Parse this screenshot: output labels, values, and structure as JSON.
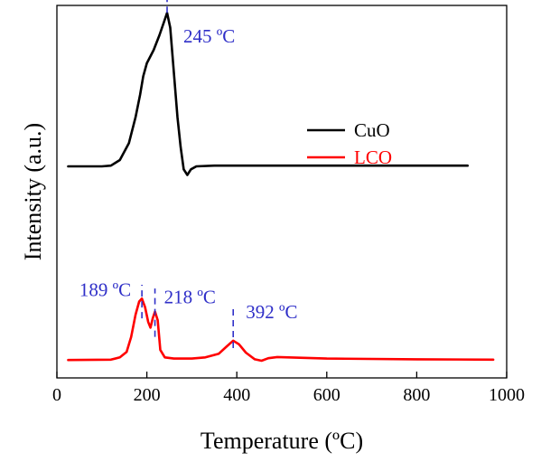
{
  "chart_data": {
    "type": "line",
    "xlabel": "Temperature (ºC)",
    "ylabel": "Intensity (a.u.)",
    "xlim": [
      0,
      1000
    ],
    "xticks": [
      0,
      200,
      400,
      600,
      800,
      1000
    ],
    "x_tick_labels": [
      "0",
      "200",
      "400",
      "600",
      "800",
      "1000"
    ],
    "y_ticks_shown": false,
    "ylim": [
      0,
      1
    ],
    "grid": false,
    "legend": {
      "position": "top-right",
      "entries": [
        "CuO",
        "LCO"
      ]
    },
    "series": [
      {
        "name": "CuO",
        "color": "#000000",
        "points": [
          [
            25,
            0.568
          ],
          [
            100,
            0.568
          ],
          [
            120,
            0.57
          ],
          [
            140,
            0.585
          ],
          [
            160,
            0.63
          ],
          [
            175,
            0.7
          ],
          [
            185,
            0.76
          ],
          [
            192,
            0.81
          ],
          [
            200,
            0.845
          ],
          [
            215,
            0.88
          ],
          [
            228,
            0.92
          ],
          [
            238,
            0.955
          ],
          [
            245,
            0.98
          ],
          [
            252,
            0.94
          ],
          [
            260,
            0.82
          ],
          [
            268,
            0.7
          ],
          [
            275,
            0.62
          ],
          [
            282,
            0.56
          ],
          [
            290,
            0.545
          ],
          [
            298,
            0.56
          ],
          [
            310,
            0.568
          ],
          [
            350,
            0.57
          ],
          [
            500,
            0.57
          ],
          [
            700,
            0.57
          ],
          [
            913,
            0.57
          ]
        ]
      },
      {
        "name": "LCO",
        "color": "#ff0000",
        "points": [
          [
            25,
            0.048
          ],
          [
            120,
            0.049
          ],
          [
            140,
            0.055
          ],
          [
            155,
            0.07
          ],
          [
            165,
            0.11
          ],
          [
            175,
            0.17
          ],
          [
            183,
            0.205
          ],
          [
            189,
            0.213
          ],
          [
            196,
            0.19
          ],
          [
            203,
            0.15
          ],
          [
            208,
            0.135
          ],
          [
            213,
            0.16
          ],
          [
            218,
            0.178
          ],
          [
            224,
            0.155
          ],
          [
            230,
            0.075
          ],
          [
            240,
            0.055
          ],
          [
            260,
            0.052
          ],
          [
            300,
            0.052
          ],
          [
            330,
            0.055
          ],
          [
            360,
            0.065
          ],
          [
            378,
            0.085
          ],
          [
            392,
            0.1
          ],
          [
            405,
            0.09
          ],
          [
            420,
            0.068
          ],
          [
            440,
            0.05
          ],
          [
            455,
            0.046
          ],
          [
            470,
            0.053
          ],
          [
            490,
            0.056
          ],
          [
            600,
            0.052
          ],
          [
            800,
            0.05
          ],
          [
            970,
            0.049
          ]
        ]
      }
    ],
    "annotations": [
      {
        "label": "245 ºC",
        "x": 245,
        "y": 0.9,
        "marker_from": 0.98,
        "marker_to": 1.03
      },
      {
        "label": "189 ºC",
        "x": 189,
        "y": 0.22,
        "marker_from": 0.16,
        "marker_to": 0.25
      },
      {
        "label": "218 ºC",
        "x": 218,
        "y": 0.2,
        "marker_from": 0.11,
        "marker_to": 0.24
      },
      {
        "label": "392 ºC",
        "x": 392,
        "y": 0.16,
        "marker_from": 0.08,
        "marker_to": 0.185
      }
    ],
    "annotation_color": "#2f2fc8"
  }
}
